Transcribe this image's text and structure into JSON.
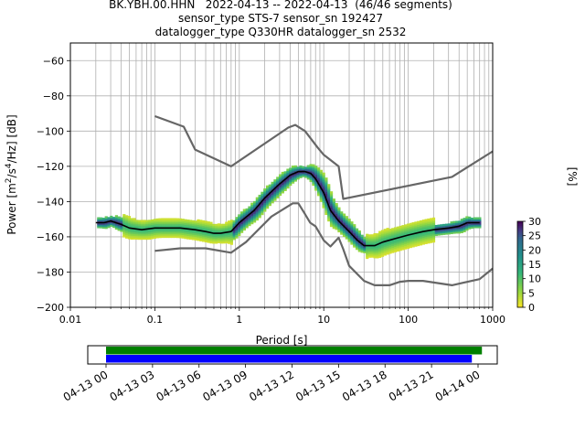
{
  "title": {
    "line1": "BK.YBH.00.HHN   2022-04-13 -- 2022-04-13  (46/46 segments)",
    "line2": "sensor_type STS-7 sensor_sn 192427",
    "line3": "datalogger_type Q330HR datalogger_sn 2532"
  },
  "chart_data": [
    {
      "type": "heatmap",
      "title": "BK.YBH.00.HHN   2022-04-13 -- 2022-04-13  (46/46 segments)",
      "xlabel": "Period [s]",
      "ylabel": "Power [m²/s⁴/Hz] [dB]",
      "x_scale": "log",
      "xlim": [
        0.01,
        1000
      ],
      "ylim": [
        -200,
        -50
      ],
      "x_ticks": [
        "0.01",
        "0.1",
        "1",
        "10",
        "100",
        "1000"
      ],
      "y_ticks": [
        "−60",
        "−80",
        "−100",
        "−120",
        "−140",
        "−160",
        "−180",
        "−200"
      ],
      "grid": true,
      "series": [
        {
          "name": "",
          "color": "#000000",
          "x": [
            0.02,
            0.025,
            0.03,
            0.04,
            0.05,
            0.07,
            0.1,
            0.15,
            0.2,
            0.3,
            0.4,
            0.5,
            0.6,
            0.8,
            1.0,
            1.5,
            2.0,
            3.0,
            4.0,
            5.0,
            6.0,
            7.0,
            8.0,
            10,
            12,
            15,
            20,
            25,
            30,
            40,
            50,
            70,
            100,
            150,
            200,
            300,
            400,
            500,
            700
          ],
          "y": [
            -152,
            -152,
            -151,
            -153,
            -155,
            -156,
            -155,
            -155,
            -155,
            -156,
            -157,
            -158,
            -158,
            -157,
            -152,
            -145,
            -138,
            -130,
            -125,
            -123,
            -123,
            -124,
            -127,
            -135,
            -145,
            -151,
            -157,
            -162,
            -165,
            -165,
            -163,
            -161,
            -159,
            -157,
            -156,
            -155,
            -154,
            -152,
            -152
          ]
        },
        {
          "name": "",
          "color": "#666666",
          "x": [
            0.1,
            0.22,
            0.3,
            0.8,
            3.8,
            4.6,
            6,
            8.5,
            10,
            15,
            17,
            330,
            1000
          ],
          "y": [
            -91.5,
            -97.5,
            -110.5,
            -120,
            -98,
            -96.5,
            -100,
            -109.5,
            -113.5,
            -120,
            -138.5,
            -126,
            -111.5
          ]
        },
        {
          "name": "",
          "color": "#666666",
          "x": [
            0.1,
            0.2,
            0.4,
            0.8,
            1.2,
            2.4,
            4.3,
            5.0,
            5.9,
            6.9,
            8,
            10,
            12,
            15,
            17,
            20,
            30,
            40,
            60,
            80,
            100,
            150,
            330,
            700,
            1000
          ],
          "y": [
            -168,
            -166.5,
            -166.5,
            -169,
            -163,
            -148.5,
            -141,
            -141,
            -146.5,
            -152,
            -154,
            -162,
            -165.5,
            -160.5,
            -167,
            -176.5,
            -185,
            -187.5,
            -187.5,
            -185.5,
            -185,
            -185,
            -187.5,
            -184,
            -178
          ]
        }
      ],
      "colorbar": {
        "label": "[%]",
        "min": 0,
        "max": 30,
        "ticks": [
          "0",
          "5",
          "10",
          "15",
          "20",
          "25",
          "30"
        ],
        "colormap": "viridis_r"
      }
    },
    {
      "type": "bar",
      "title": "",
      "x_ticks": [
        "04-13 00",
        "04-13 03",
        "04-13 06",
        "04-13 09",
        "04-13 12",
        "04-13 15",
        "04-13 18",
        "04-13 21",
        "04-14 00"
      ],
      "series": [
        {
          "name": "",
          "color": "#008000",
          "start_hour": 0.0,
          "end_hour": 24.25
        },
        {
          "name": "",
          "color": "#0000ff",
          "start_hour": 0.0,
          "end_hour": 23.6
        }
      ]
    }
  ]
}
